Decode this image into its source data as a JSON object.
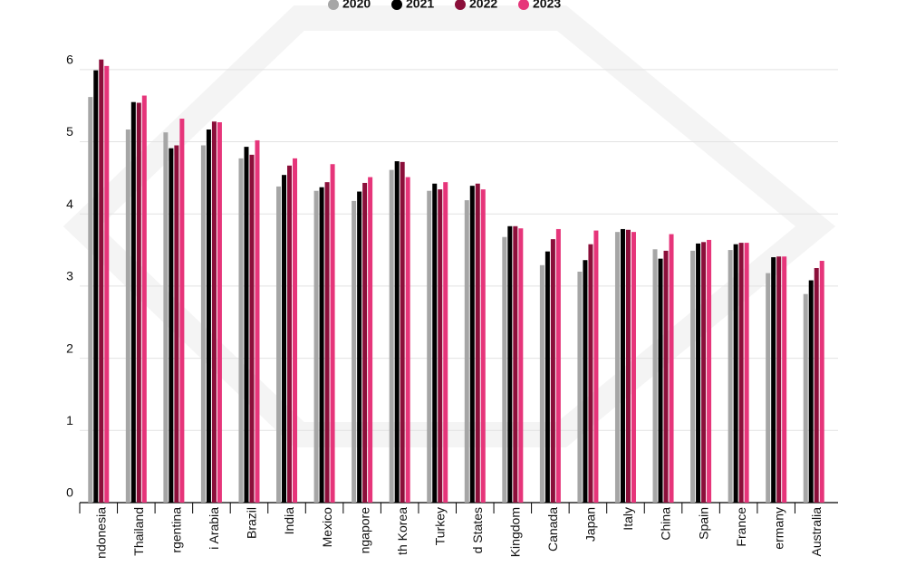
{
  "chart_data": {
    "type": "bar",
    "categories": [
      "ndonesia",
      "Thailand",
      "rgentina",
      "i Arabia",
      "Brazil",
      "India",
      "Mexico",
      "ngapore",
      "th Korea",
      "Turkey",
      "d States",
      "Kingdom",
      "Canada",
      "Japan",
      "Italy",
      "China",
      "Spain",
      "France",
      "ermany",
      "Australia"
    ],
    "series": [
      {
        "name": "2020",
        "color": "#a6a6a6",
        "values": [
          5.62,
          5.17,
          5.13,
          4.95,
          4.77,
          4.38,
          4.32,
          4.18,
          4.61,
          4.32,
          4.19,
          3.68,
          3.29,
          3.2,
          3.75,
          3.51,
          3.49,
          3.5,
          3.18,
          2.89
        ]
      },
      {
        "name": "2021",
        "color": "#000000",
        "values": [
          5.99,
          5.55,
          4.91,
          5.17,
          4.93,
          4.54,
          4.37,
          4.31,
          4.73,
          4.42,
          4.39,
          3.83,
          3.48,
          3.36,
          3.79,
          3.38,
          3.59,
          3.58,
          3.4,
          3.08
        ]
      },
      {
        "name": "2022",
        "color": "#8b0f3a",
        "values": [
          6.14,
          5.54,
          4.95,
          5.28,
          4.82,
          4.67,
          4.44,
          4.43,
          4.72,
          4.34,
          4.42,
          3.83,
          3.65,
          3.58,
          3.78,
          3.49,
          3.61,
          3.6,
          3.41,
          3.25
        ]
      },
      {
        "name": "2023",
        "color": "#e6357a",
        "values": [
          6.05,
          5.64,
          5.32,
          5.27,
          5.02,
          4.77,
          4.69,
          4.51,
          4.51,
          4.44,
          4.34,
          3.8,
          3.79,
          3.77,
          3.75,
          3.72,
          3.64,
          3.6,
          3.41,
          3.35
        ]
      }
    ],
    "ylim": [
      0,
      6.5
    ],
    "yticks": [
      0,
      1,
      2,
      3,
      4,
      5,
      6
    ],
    "grid": true
  }
}
